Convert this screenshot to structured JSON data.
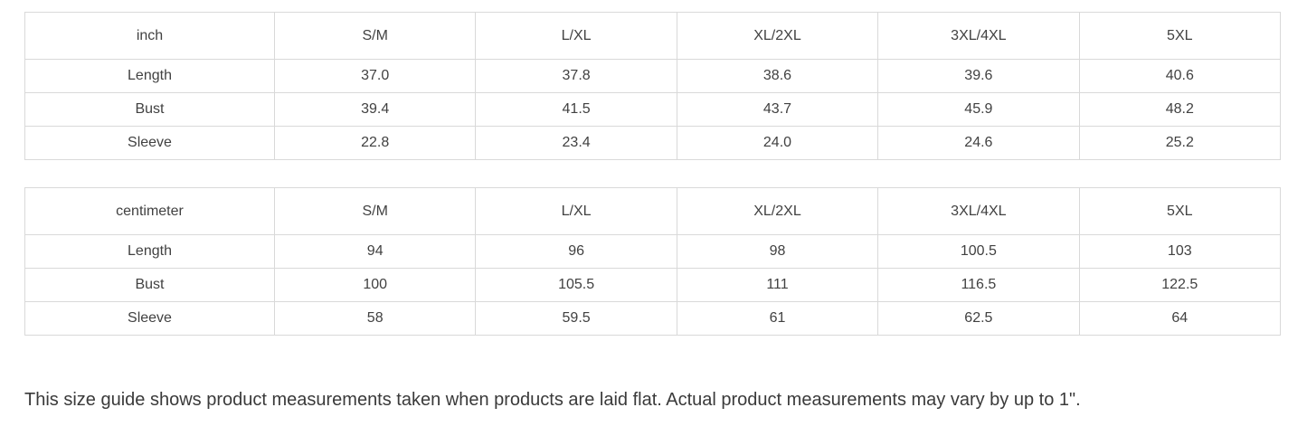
{
  "page": {
    "background_color": "#ffffff",
    "border_color": "#d9d9d9",
    "text_color": "#414141"
  },
  "chart_data": [
    {
      "type": "table",
      "unit": "inch",
      "columns": [
        "inch",
        "S/M",
        "L/XL",
        "XL/2XL",
        "3XL/4XL",
        "5XL"
      ],
      "rows": [
        {
          "label": "Length",
          "values": [
            "37.0",
            "37.8",
            "38.6",
            "39.6",
            "40.6"
          ]
        },
        {
          "label": "Bust",
          "values": [
            "39.4",
            "41.5",
            "43.7",
            "45.9",
            "48.2"
          ]
        },
        {
          "label": "Sleeve",
          "values": [
            "22.8",
            "23.4",
            "24.0",
            "24.6",
            "25.2"
          ]
        }
      ]
    },
    {
      "type": "table",
      "unit": "centimeter",
      "columns": [
        "centimeter",
        "S/M",
        "L/XL",
        "XL/2XL",
        "3XL/4XL",
        "5XL"
      ],
      "rows": [
        {
          "label": "Length",
          "values": [
            "94",
            "96",
            "98",
            "100.5",
            "103"
          ]
        },
        {
          "label": "Bust",
          "values": [
            "100",
            "105.5",
            "111",
            "116.5",
            "122.5"
          ]
        },
        {
          "label": "Sleeve",
          "values": [
            "58",
            "59.5",
            "61",
            "62.5",
            "64"
          ]
        }
      ]
    }
  ],
  "note": "This size guide shows product measurements taken when products are laid flat. Actual product measurements may vary by up to 1\"."
}
